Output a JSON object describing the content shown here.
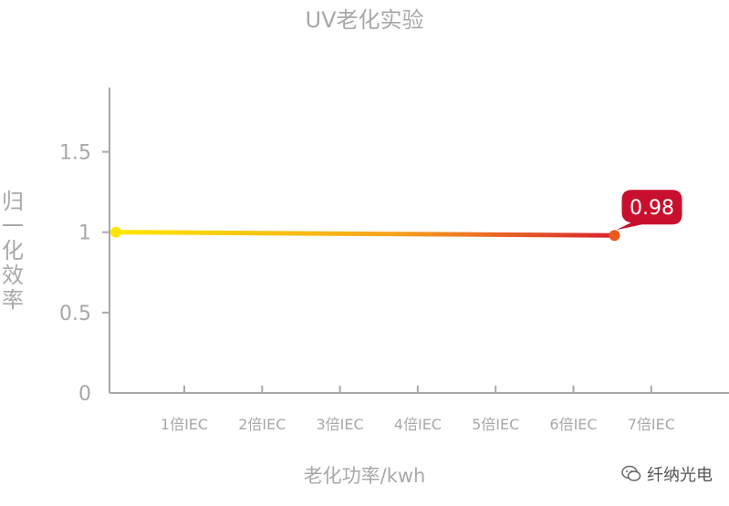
{
  "chart_data": {
    "type": "line",
    "title": "UV老化实验",
    "xlabel": "老化功率/kwh",
    "ylabel": "归一化效率",
    "categories": [
      "1倍IEC",
      "2倍IEC",
      "3倍IEC",
      "4倍IEC",
      "5倍IEC",
      "6倍IEC",
      "7倍IEC"
    ],
    "ylim": [
      0,
      1.9
    ],
    "yticks": [
      "0",
      "0.5",
      "1",
      "1.5"
    ],
    "series": [
      {
        "start": 1.0,
        "end": 0.98,
        "end_label": "0.98",
        "gradient": [
          "#ffe600",
          "#f7a51f",
          "#d9232f"
        ]
      }
    ],
    "colors": {
      "axis": "#a8a8a8",
      "callout": "#c8102e",
      "start_point": "#ffe600",
      "end_point": "#ea5a1d"
    }
  },
  "watermark": {
    "text": "纤纳光电",
    "icon": "wechat-icon"
  }
}
